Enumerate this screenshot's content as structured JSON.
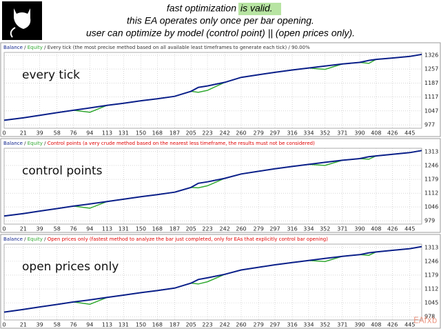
{
  "header": {
    "line1": "fast  optimization",
    "highlight": "is valid.",
    "line2": "this EA operates only once per bar opening.",
    "line3": "user can optimize by model (control point) || (open prices only)."
  },
  "watermark": "EAfxb",
  "chart_data": [
    {
      "type": "line",
      "annotation": "every tick",
      "legend_separator": " / ",
      "description": "Every tick (the most precise method based on all available least timeframes to generate each tick) / 90.00%",
      "description_color": "#333333",
      "x": [
        0,
        21,
        39,
        58,
        76,
        94,
        113,
        131,
        150,
        168,
        187,
        205,
        213,
        223,
        242,
        260,
        279,
        297,
        316,
        334,
        352,
        371,
        390,
        400,
        408,
        426,
        445,
        458
      ],
      "series": [
        {
          "name": "Balance",
          "color": "#0b1f8a",
          "values": [
            1000,
            1012,
            1025,
            1038,
            1050,
            1062,
            1075,
            1085,
            1098,
            1108,
            1120,
            1145,
            1165,
            1172,
            1190,
            1215,
            1228,
            1240,
            1252,
            1262,
            1272,
            1282,
            1290,
            1300,
            1305,
            1312,
            1320,
            1330
          ]
        },
        {
          "name": "Equity",
          "color": "#2fa82f",
          "values": [
            1000,
            1012,
            1025,
            1038,
            1050,
            1040,
            1075,
            1085,
            1098,
            1108,
            1120,
            1145,
            1140,
            1150,
            1190,
            1215,
            1228,
            1240,
            1252,
            1262,
            1255,
            1282,
            1290,
            1285,
            1305,
            1312,
            1320,
            1330
          ]
        }
      ],
      "xlim": [
        0,
        458
      ],
      "xticks": [
        0,
        21,
        39,
        58,
        76,
        94,
        113,
        131,
        150,
        168,
        187,
        205,
        223,
        242,
        260,
        279,
        297,
        316,
        334,
        352,
        371,
        390,
        408,
        426,
        445
      ],
      "ylim": [
        960,
        1340
      ],
      "yticks": [
        977,
        1047,
        1117,
        1187,
        1257,
        1326
      ],
      "grid": true
    },
    {
      "type": "line",
      "annotation": "control points",
      "legend_separator": " / ",
      "description": "Control points (a very crude method based on the nearest less timeframe, the results must not be considered)",
      "description_color": "#e00000",
      "x": [
        0,
        21,
        39,
        58,
        76,
        94,
        113,
        131,
        150,
        168,
        187,
        205,
        213,
        223,
        242,
        260,
        279,
        297,
        316,
        334,
        352,
        371,
        390,
        400,
        408,
        426,
        445,
        458
      ],
      "series": [
        {
          "name": "Balance",
          "color": "#0b1f8a",
          "values": [
            1002,
            1014,
            1026,
            1038,
            1050,
            1060,
            1072,
            1083,
            1095,
            1105,
            1117,
            1140,
            1160,
            1167,
            1184,
            1205,
            1218,
            1230,
            1241,
            1251,
            1261,
            1271,
            1279,
            1288,
            1292,
            1300,
            1308,
            1318
          ]
        },
        {
          "name": "Equity",
          "color": "#2fa82f",
          "values": [
            1002,
            1014,
            1026,
            1038,
            1050,
            1040,
            1072,
            1083,
            1095,
            1105,
            1117,
            1140,
            1138,
            1148,
            1184,
            1205,
            1218,
            1230,
            1241,
            1251,
            1246,
            1271,
            1279,
            1276,
            1292,
            1300,
            1308,
            1318
          ]
        }
      ],
      "xlim": [
        0,
        458
      ],
      "xticks": [
        0,
        21,
        39,
        58,
        76,
        94,
        113,
        131,
        150,
        168,
        187,
        205,
        223,
        242,
        260,
        279,
        297,
        316,
        334,
        352,
        371,
        390,
        408,
        426,
        445
      ],
      "ylim": [
        963,
        1329
      ],
      "yticks": [
        979,
        1046,
        1112,
        1179,
        1246,
        1313
      ],
      "grid": true
    },
    {
      "type": "line",
      "annotation": "open prices only",
      "legend_separator": " / ",
      "description": "Open prices only (fastest method to analyze the bar just completed, only for EAs that explicitly control bar opening)",
      "description_color": "#e00000",
      "x": [
        0,
        21,
        39,
        58,
        76,
        94,
        113,
        131,
        150,
        168,
        187,
        205,
        213,
        223,
        242,
        260,
        279,
        297,
        316,
        334,
        352,
        371,
        390,
        400,
        408,
        426,
        445,
        458
      ],
      "series": [
        {
          "name": "Balance",
          "color": "#0b1f8a",
          "values": [
            1000,
            1013,
            1025,
            1037,
            1049,
            1059,
            1071,
            1082,
            1094,
            1104,
            1116,
            1140,
            1158,
            1166,
            1183,
            1204,
            1217,
            1229,
            1240,
            1250,
            1260,
            1270,
            1278,
            1287,
            1291,
            1299,
            1307,
            1317
          ]
        },
        {
          "name": "Equity",
          "color": "#2fa82f",
          "values": [
            1000,
            1013,
            1025,
            1037,
            1049,
            1038,
            1071,
            1082,
            1094,
            1104,
            1116,
            1140,
            1136,
            1147,
            1183,
            1204,
            1217,
            1229,
            1240,
            1250,
            1245,
            1270,
            1278,
            1275,
            1291,
            1299,
            1307,
            1317
          ]
        }
      ],
      "xlim": [
        0,
        458
      ],
      "xticks": [
        0,
        21,
        39,
        58,
        76,
        94,
        113,
        131,
        150,
        168,
        187,
        205,
        223,
        242,
        260,
        279,
        297,
        316,
        334,
        352,
        371,
        390,
        408,
        426,
        445
      ],
      "ylim": [
        962,
        1329
      ],
      "yticks": [
        978,
        1045,
        1112,
        1179,
        1246,
        1313
      ],
      "grid": true
    }
  ]
}
